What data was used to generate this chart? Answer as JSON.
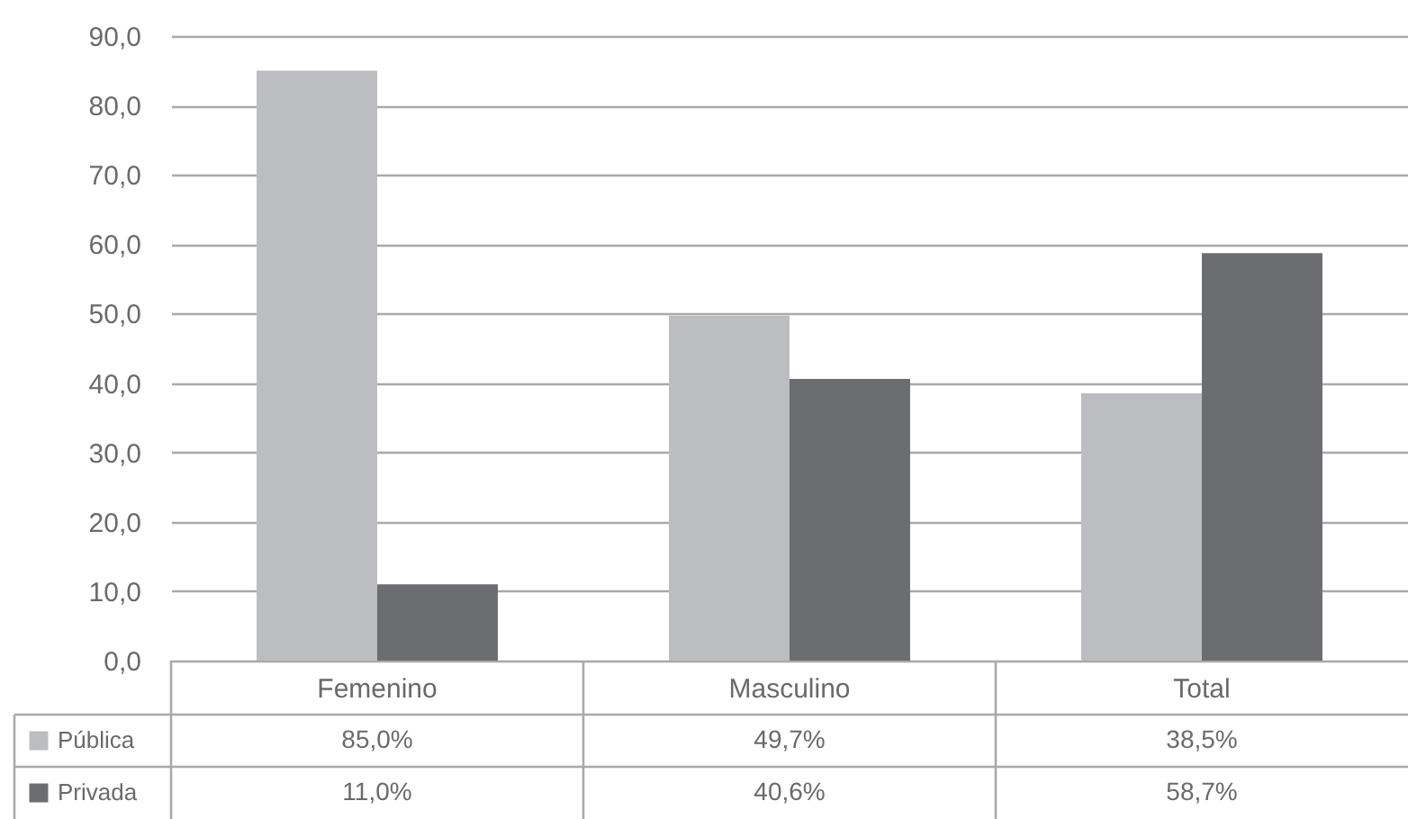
{
  "chart_data": {
    "type": "bar",
    "categories": [
      "Femenino",
      "Masculino",
      "Total"
    ],
    "series": [
      {
        "name": "Pública",
        "color": "#bcbdc0",
        "values": [
          85.0,
          49.7,
          38.5
        ],
        "value_labels": [
          "85,0%",
          "49,7%",
          "38,5%"
        ]
      },
      {
        "name": "Privada",
        "color": "#6c6d71",
        "values": [
          11.0,
          40.6,
          58.7
        ],
        "value_labels": [
          "11,0%",
          "40,6%",
          "58,7%"
        ]
      }
    ],
    "ylim": [
      0,
      90
    ],
    "yticks": [
      {
        "value": 0,
        "label": "0,0"
      },
      {
        "value": 10,
        "label": "10,0"
      },
      {
        "value": 20,
        "label": "20,0"
      },
      {
        "value": 30,
        "label": "30,0"
      },
      {
        "value": 40,
        "label": "40,0"
      },
      {
        "value": 50,
        "label": "50,0"
      },
      {
        "value": 60,
        "label": "60,0"
      },
      {
        "value": 70,
        "label": "70,0"
      },
      {
        "value": 80,
        "label": "80,0"
      },
      {
        "value": 90,
        "label": "90,0"
      }
    ],
    "grid": "y",
    "legend": "bottom left"
  }
}
